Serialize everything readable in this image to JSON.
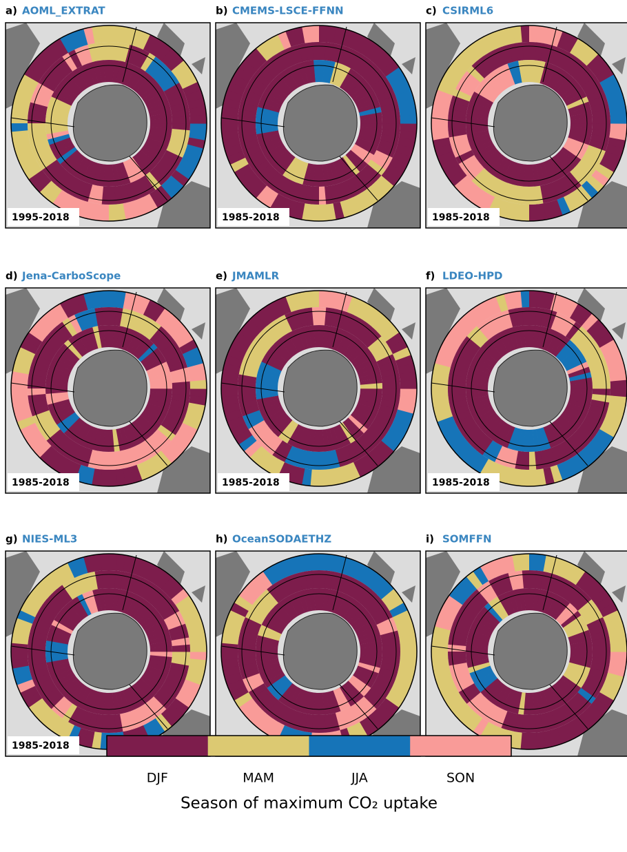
{
  "panels": [
    {
      "label": "a)",
      "name": "AOML_EXTRAT",
      "period": "1995-2018"
    },
    {
      "label": "b)",
      "name": "CMEMS-LSCE-FFNN",
      "period": "1985-2018"
    },
    {
      "label": "c)",
      "name": "CSIRML6",
      "period": "1985-2018"
    },
    {
      "label": "d)",
      "name": "Jena-CarboScope",
      "period": "1985-2018"
    },
    {
      "label": "e)",
      "name": "JMAMLR",
      "period": "1985-2018"
    },
    {
      "label": "f)",
      "name": "LDEO-HPD",
      "period": "1985-2018"
    },
    {
      "label": "g)",
      "name": "NIES-ML3",
      "period": "1985-2018"
    },
    {
      "label": "h)",
      "name": "OceanSODAETHZ",
      "period": "1985-2018"
    },
    {
      "label": "i)",
      "name": "SOMFFN",
      "period": "1985-2018"
    }
  ],
  "colorbar": {
    "categories": [
      {
        "name": "DJF",
        "color": "#7d1d4c"
      },
      {
        "name": "MAM",
        "color": "#dcc972"
      },
      {
        "name": "JJA",
        "color": "#1674b8"
      },
      {
        "name": "SON",
        "color": "#f99b98"
      }
    ],
    "label": "Season of maximum CO₂ uptake"
  }
}
